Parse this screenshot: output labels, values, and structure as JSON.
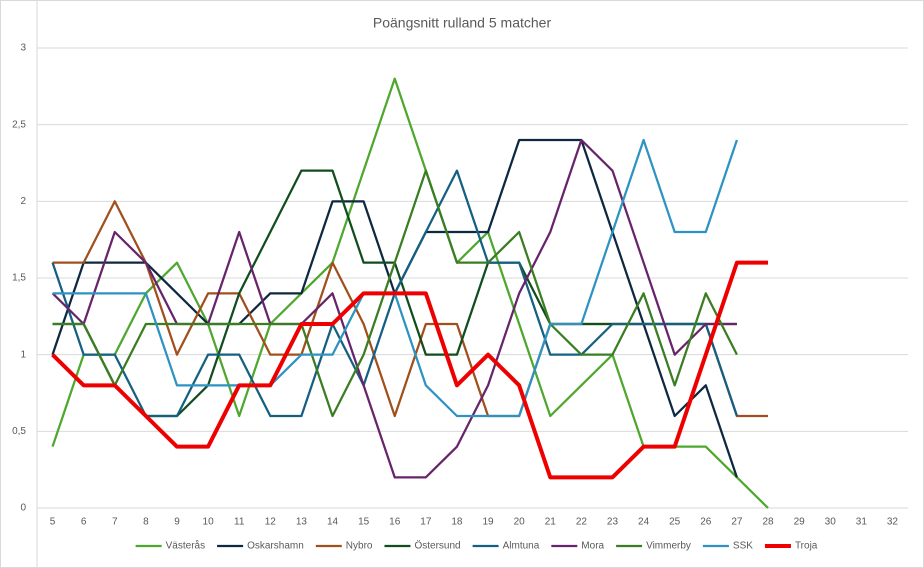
{
  "chart_data": {
    "type": "line",
    "title": "Poängsnitt rulland 5 matcher",
    "categories": [
      5,
      6,
      7,
      8,
      9,
      10,
      11,
      12,
      13,
      14,
      15,
      16,
      17,
      18,
      19,
      20,
      21,
      22,
      23,
      24,
      25,
      26,
      27,
      28,
      29,
      30,
      31,
      32
    ],
    "ylim": [
      0,
      3
    ],
    "yticks": [
      0,
      {
        "value": 0.5,
        "label": "0,5"
      },
      1,
      {
        "value": 1.5,
        "label": "1,5"
      },
      2,
      {
        "value": 2.5,
        "label": "2,5"
      },
      3
    ],
    "grid": true,
    "legend": "bottom",
    "series": [
      {
        "name": "Västerås",
        "color": "#4ea72e",
        "values": [
          0.4,
          1.0,
          1.0,
          1.4,
          1.6,
          1.2,
          0.6,
          1.2,
          1.4,
          1.6,
          2.2,
          2.8,
          2.2,
          1.6,
          1.8,
          1.2,
          0.6,
          0.8,
          1.0,
          0.4,
          0.4,
          0.4,
          0.2,
          0.0,
          null,
          null,
          null,
          null
        ]
      },
      {
        "name": "Oskarshamn",
        "color": "#0e2841",
        "values": [
          1.0,
          1.6,
          1.6,
          1.6,
          1.4,
          1.2,
          1.2,
          1.4,
          1.4,
          2.0,
          2.0,
          1.4,
          1.8,
          1.8,
          1.8,
          2.4,
          2.4,
          2.4,
          1.8,
          1.2,
          0.6,
          0.8,
          0.2,
          null,
          null,
          null,
          null,
          null
        ]
      },
      {
        "name": "Nybro",
        "color": "#a0501c",
        "values": [
          1.6,
          1.6,
          2.0,
          1.6,
          1.0,
          1.4,
          1.4,
          1.0,
          1.0,
          1.6,
          1.2,
          0.6,
          1.2,
          1.2,
          0.6,
          0.6,
          1.2,
          1.2,
          1.2,
          1.2,
          1.2,
          1.2,
          0.6,
          0.6,
          null,
          null,
          null,
          null
        ]
      },
      {
        "name": "Östersund",
        "color": "#124d1f",
        "values": [
          1.2,
          1.2,
          0.8,
          0.6,
          0.6,
          0.8,
          1.4,
          1.8,
          2.2,
          2.2,
          1.6,
          1.6,
          1.0,
          1.0,
          1.6,
          1.6,
          1.2,
          1.2,
          1.2,
          1.2,
          1.2,
          1.2,
          1.2,
          null,
          null,
          null,
          null,
          null
        ]
      },
      {
        "name": "Almtuna",
        "color": "#156082",
        "values": [
          1.6,
          1.0,
          1.0,
          0.6,
          0.6,
          1.0,
          1.0,
          0.6,
          0.6,
          1.2,
          0.8,
          1.4,
          1.8,
          2.2,
          1.6,
          1.6,
          1.0,
          1.0,
          1.2,
          1.2,
          1.2,
          1.2,
          0.6,
          null,
          null,
          null,
          null,
          null
        ]
      },
      {
        "name": "Mora",
        "color": "#68246b",
        "values": [
          1.4,
          1.2,
          1.8,
          1.6,
          1.2,
          1.2,
          1.8,
          1.2,
          1.2,
          1.4,
          0.8,
          0.2,
          0.2,
          0.4,
          0.8,
          1.4,
          1.8,
          2.4,
          2.2,
          1.6,
          1.0,
          1.2,
          1.2,
          null,
          null,
          null,
          null,
          null
        ]
      },
      {
        "name": "Vimmerby",
        "color": "#3b7d23",
        "values": [
          1.2,
          1.2,
          0.8,
          1.2,
          1.2,
          1.2,
          1.2,
          1.2,
          1.2,
          0.6,
          1.0,
          1.6,
          2.2,
          1.6,
          1.6,
          1.8,
          1.2,
          1.0,
          1.0,
          1.4,
          0.8,
          1.4,
          1.0,
          null,
          null,
          null,
          null,
          null
        ]
      },
      {
        "name": "SSK",
        "color": "#2e93c2",
        "values": [
          1.4,
          1.4,
          1.4,
          1.4,
          0.8,
          0.8,
          0.8,
          0.8,
          1.0,
          1.0,
          1.4,
          1.4,
          0.8,
          0.6,
          0.6,
          0.6,
          1.2,
          1.2,
          1.8,
          2.4,
          1.8,
          1.8,
          2.4,
          null,
          null,
          null,
          null,
          null
        ]
      },
      {
        "name": "Troja",
        "color": "#ee0000",
        "values": [
          1.0,
          0.8,
          0.8,
          0.6,
          0.4,
          0.4,
          0.8,
          0.8,
          1.2,
          1.2,
          1.4,
          1.4,
          1.4,
          0.8,
          1.0,
          0.8,
          0.2,
          0.2,
          0.2,
          0.4,
          0.4,
          1.0,
          1.6,
          1.6,
          null,
          null,
          null,
          null
        ]
      }
    ]
  }
}
